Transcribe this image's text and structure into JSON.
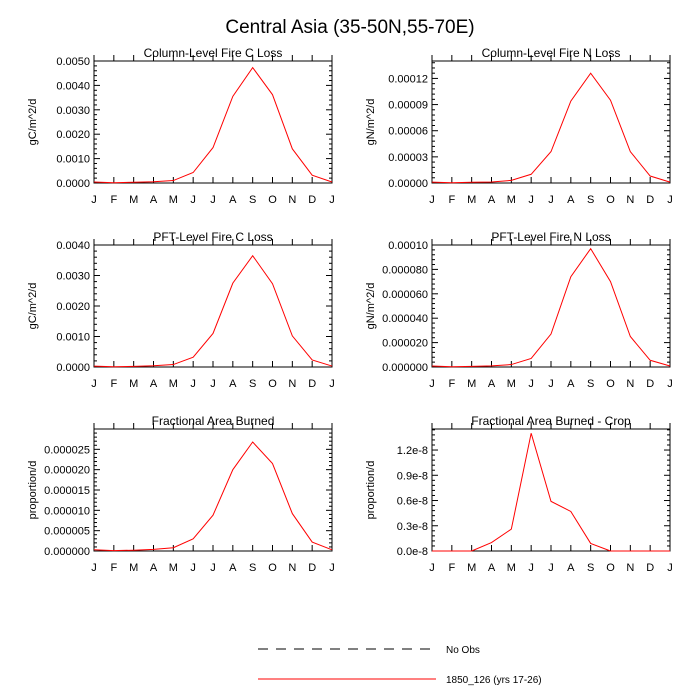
{
  "figure_title": "Central Asia (35-50N,55-70E)",
  "legend": {
    "entries": [
      {
        "label": "No Obs",
        "color": "#000000",
        "style": "dashed"
      },
      {
        "label": "1850_126 (yrs 17-26)",
        "color": "#ff0000",
        "style": "solid"
      }
    ]
  },
  "chart_data": [
    {
      "type": "line",
      "title": "Column-Level Fire C Loss",
      "ylabel": "gC/m^2/d",
      "categories": [
        "J",
        "F",
        "M",
        "A",
        "M",
        "J",
        "J",
        "A",
        "S",
        "O",
        "N",
        "D",
        "J"
      ],
      "yticks": [
        "0.0000",
        "0.0010",
        "0.0020",
        "0.0030",
        "0.0040",
        "0.0050"
      ],
      "ylim": [
        0,
        0.005
      ],
      "series": [
        {
          "name": "1850_126 (yrs 17-26)",
          "color": "#ff0000",
          "values": [
            4e-05,
            1e-05,
            3e-05,
            5e-05,
            0.0001,
            0.00043,
            0.00145,
            0.00355,
            0.00473,
            0.00362,
            0.0014,
            0.00032,
            4e-05
          ]
        }
      ]
    },
    {
      "type": "line",
      "title": "Column-Level Fire N Loss",
      "ylabel": "gN/m^2/d",
      "categories": [
        "J",
        "F",
        "M",
        "A",
        "M",
        "J",
        "J",
        "A",
        "S",
        "O",
        "N",
        "D",
        "J"
      ],
      "yticks": [
        "0.00000",
        "0.00003",
        "0.00006",
        "0.00009",
        "0.00012"
      ],
      "ylim": [
        0,
        0.00014
      ],
      "series": [
        {
          "name": "1850_126 (yrs 17-26)",
          "color": "#ff0000",
          "values": [
            1e-06,
            3e-07,
            8e-07,
            1.2e-06,
            3e-06,
            1e-05,
            3.6e-05,
            9.4e-05,
            0.000126,
            9.5e-05,
            3.6e-05,
            8e-06,
            1e-06
          ]
        }
      ]
    },
    {
      "type": "line",
      "title": "PFT-Level Fire C Loss",
      "ylabel": "gC/m^2/d",
      "categories": [
        "J",
        "F",
        "M",
        "A",
        "M",
        "J",
        "J",
        "A",
        "S",
        "O",
        "N",
        "D",
        "J"
      ],
      "yticks": [
        "0.0000",
        "0.0010",
        "0.0020",
        "0.0030",
        "0.0040"
      ],
      "ylim": [
        0,
        0.004
      ],
      "series": [
        {
          "name": "1850_126 (yrs 17-26)",
          "color": "#ff0000",
          "values": [
            3e-05,
            1e-05,
            2e-05,
            4e-05,
            8e-05,
            0.00032,
            0.0011,
            0.00275,
            0.00365,
            0.00273,
            0.00102,
            0.00023,
            3e-05
          ]
        }
      ]
    },
    {
      "type": "line",
      "title": "PFT-Level Fire N Loss",
      "ylabel": "gN/m^2/d",
      "categories": [
        "J",
        "F",
        "M",
        "A",
        "M",
        "J",
        "J",
        "A",
        "S",
        "O",
        "N",
        "D",
        "J"
      ],
      "yticks": [
        "0.000000",
        "0.000020",
        "0.000040",
        "0.000060",
        "0.000080",
        "0.00010"
      ],
      "ylim": [
        0,
        0.0001
      ],
      "series": [
        {
          "name": "1850_126 (yrs 17-26)",
          "color": "#ff0000",
          "values": [
            8e-07,
            2e-07,
            5e-07,
            9e-07,
            2e-06,
            7e-06,
            2.7e-05,
            7.4e-05,
            9.7e-05,
            7e-05,
            2.5e-05,
            5.5e-06,
            8e-07
          ]
        }
      ]
    },
    {
      "type": "line",
      "title": "Fractional Area Burned",
      "ylabel": "proportion/d",
      "categories": [
        "J",
        "F",
        "M",
        "A",
        "M",
        "J",
        "J",
        "A",
        "S",
        "O",
        "N",
        "D",
        "J"
      ],
      "yticks": [
        "0.000000",
        "0.000005",
        "0.000010",
        "0.000015",
        "0.000020",
        "0.000025"
      ],
      "ylim": [
        0,
        3e-05
      ],
      "series": [
        {
          "name": "1850_126 (yrs 17-26)",
          "color": "#ff0000",
          "values": [
            3e-07,
            1e-07,
            2e-07,
            4e-07,
            8e-07,
            3e-06,
            8.8e-06,
            2e-05,
            2.68e-05,
            2.15e-05,
            9.2e-06,
            2.2e-06,
            3e-07
          ]
        }
      ]
    },
    {
      "type": "line",
      "title": "Fractional Area Burned - Crop",
      "ylabel": "proportion/d",
      "categories": [
        "J",
        "F",
        "M",
        "A",
        "M",
        "J",
        "J",
        "A",
        "S",
        "O",
        "N",
        "D",
        "J"
      ],
      "yticks": [
        "0.0e-8",
        "0.3e-8",
        "0.6e-8",
        "0.9e-8",
        "1.2e-8"
      ],
      "ylim": [
        0,
        1.45e-08
      ],
      "series": [
        {
          "name": "1850_126 (yrs 17-26)",
          "color": "#ff0000",
          "values": [
            0,
            0,
            0,
            1e-09,
            2.6e-09,
            1.4e-08,
            5.9e-09,
            4.7e-09,
            9e-10,
            0,
            0,
            0,
            0
          ]
        }
      ]
    }
  ]
}
